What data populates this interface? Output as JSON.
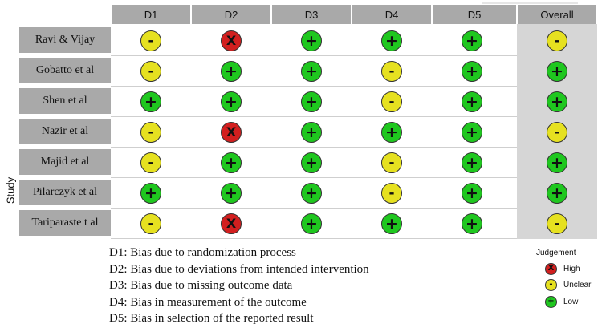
{
  "axis_label": "Study",
  "domains": [
    "D1",
    "D2",
    "D3",
    "D4",
    "D5",
    "Overall"
  ],
  "studies": [
    {
      "name": "Ravi & Vijay",
      "judgements": [
        "unclear",
        "high",
        "low",
        "low",
        "low",
        "unclear"
      ]
    },
    {
      "name": "Gobatto et al",
      "judgements": [
        "unclear",
        "low",
        "low",
        "unclear",
        "low",
        "low"
      ]
    },
    {
      "name": "Shen et al",
      "judgements": [
        "low",
        "low",
        "low",
        "unclear",
        "low",
        "low"
      ]
    },
    {
      "name": "Nazir et al",
      "judgements": [
        "unclear",
        "high",
        "low",
        "low",
        "low",
        "unclear"
      ]
    },
    {
      "name": "Majid et al",
      "judgements": [
        "unclear",
        "low",
        "low",
        "unclear",
        "low",
        "low"
      ]
    },
    {
      "name": "Pilarczyk et al",
      "judgements": [
        "low",
        "low",
        "low",
        "unclear",
        "low",
        "low"
      ]
    },
    {
      "name": "Tariparaste t al",
      "judgements": [
        "unclear",
        "high",
        "low",
        "low",
        "low",
        "unclear"
      ]
    }
  ],
  "domain_descriptions": [
    "D1: Bias due to randomization process",
    "D2: Bias due to deviations from intended intervention",
    "D3: Bias due to missing outcome data",
    "D4: Bias in measurement of the outcome",
    "D5: Bias in selection of the reported result"
  ],
  "judgement_legend": {
    "title": "Judgement",
    "items": [
      {
        "key": "high",
        "label": "High",
        "symbol": "X",
        "color": "#d21f1f"
      },
      {
        "key": "unclear",
        "label": "Unclear",
        "symbol": "-",
        "color": "#e6e120"
      },
      {
        "key": "low",
        "label": "Low",
        "symbol": "+",
        "color": "#1fc71f"
      }
    ]
  }
}
